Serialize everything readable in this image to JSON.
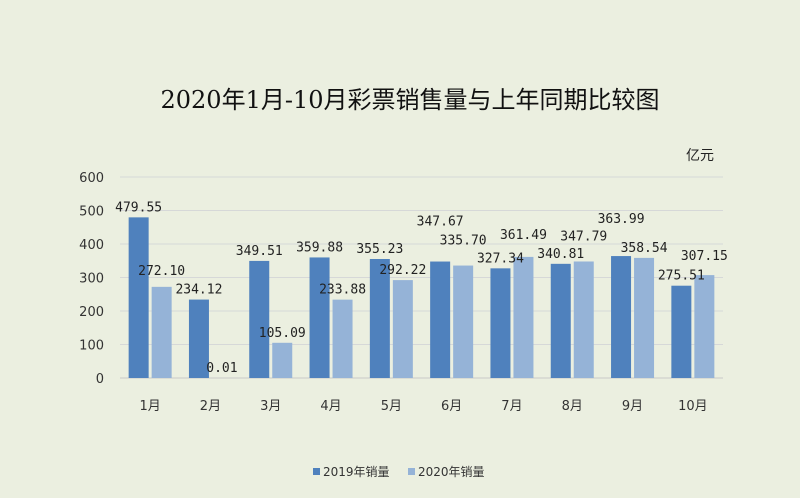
{
  "chart_data": {
    "type": "bar",
    "title": "2020年1月-10月彩票销售量与上年同期比较图",
    "unit": "亿元",
    "xlabel": "",
    "ylabel": "",
    "ylim": [
      0,
      600
    ],
    "yticks": [
      "0",
      "100",
      "200",
      "300",
      "400",
      "500",
      "600"
    ],
    "grid": true,
    "legend_position": "bottom",
    "categories": [
      "1月",
      "2月",
      "3月",
      "4月",
      "5月",
      "6月",
      "7月",
      "8月",
      "9月",
      "10月"
    ],
    "series": [
      {
        "name": "2019年销量",
        "color": "#4f81bd",
        "values": [
          479.55,
          234.12,
          349.51,
          359.88,
          355.23,
          347.67,
          327.34,
          340.81,
          363.99,
          275.51
        ],
        "labels": [
          "479.55",
          "234.12",
          "349.51",
          "359.88",
          "355.23",
          "347.67",
          "327.34",
          "340.81",
          "363.99",
          "275.51"
        ]
      },
      {
        "name": "2020年销量",
        "color": "#95b3d7",
        "values": [
          272.1,
          0.01,
          105.09,
          233.88,
          292.22,
          335.7,
          361.49,
          347.79,
          358.54,
          307.15
        ],
        "labels": [
          "272.10",
          "0.01",
          "105.09",
          "233.88",
          "292.22",
          "335.70",
          "361.49",
          "347.79",
          "358.54",
          "307.15"
        ]
      }
    ]
  }
}
